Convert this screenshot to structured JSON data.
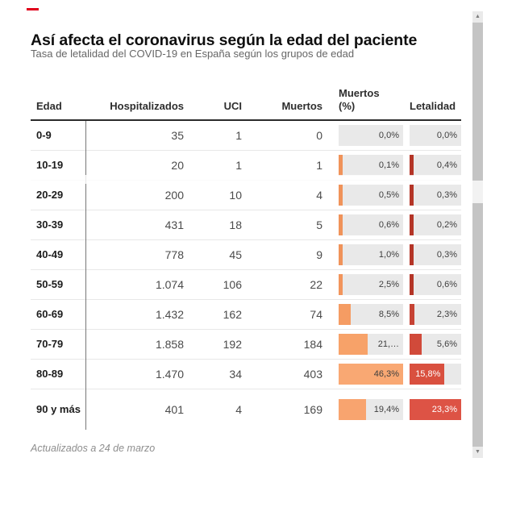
{
  "chart_data": {
    "type": "table",
    "title": "Así afecta el coronavirus según la edad del paciente",
    "subtitle": "Tasa de letalidad del COVID-19 en España según los grupos de edad",
    "note": "Actualizados a 24 de marzo",
    "columns": [
      "Edad",
      "Hospitalizados",
      "UCI",
      "Muertos",
      "Muertos (%)",
      "Letalidad"
    ],
    "bar_scales": {
      "muertos_pct_max": 46.3,
      "letalidad_max": 23.3
    },
    "colors": {
      "cell_bg": "#e9e9e9",
      "orange": "#f8a26c",
      "red": "#d9503f",
      "accent": "#e0001b"
    },
    "rows": [
      {
        "edad": "0-9",
        "hospitalizados": "35",
        "uci": "1",
        "muertos": "0",
        "muertos_pct": {
          "label": "0,0%",
          "value": 0.0,
          "bar_width_pct": 0,
          "bar_color": "#f0935a",
          "label_color": "#3e3e3e",
          "label_inside_bar": false
        },
        "letalidad": {
          "label": "0,0%",
          "value": 0.0,
          "bar_width_pct": 0,
          "bar_color": "#b43527",
          "label_color": "#3e3e3e",
          "label_inside_bar": false
        }
      },
      {
        "edad": "10-19",
        "hospitalizados": "20",
        "uci": "1",
        "muertos": "1",
        "muertos_pct": {
          "label": "0,1%",
          "value": 0.1,
          "bar_width_pct": 0.2,
          "bar_color": "#f0935a",
          "label_color": "#3e3e3e",
          "label_inside_bar": false
        },
        "letalidad": {
          "label": "0,4%",
          "value": 0.4,
          "bar_width_pct": 1.7,
          "bar_color": "#b43527",
          "label_color": "#3e3e3e",
          "label_inside_bar": false
        }
      },
      {
        "edad": "20-29",
        "hospitalizados": "200",
        "uci": "10",
        "muertos": "4",
        "muertos_pct": {
          "label": "0,5%",
          "value": 0.5,
          "bar_width_pct": 1.1,
          "bar_color": "#f0935a",
          "label_color": "#3e3e3e",
          "label_inside_bar": false
        },
        "letalidad": {
          "label": "0,3%",
          "value": 0.3,
          "bar_width_pct": 1.3,
          "bar_color": "#b43527",
          "label_color": "#3e3e3e",
          "label_inside_bar": false
        }
      },
      {
        "edad": "30-39",
        "hospitalizados": "431",
        "uci": "18",
        "muertos": "5",
        "muertos_pct": {
          "label": "0,6%",
          "value": 0.6,
          "bar_width_pct": 1.3,
          "bar_color": "#f0935a",
          "label_color": "#3e3e3e",
          "label_inside_bar": false
        },
        "letalidad": {
          "label": "0,2%",
          "value": 0.2,
          "bar_width_pct": 0.9,
          "bar_color": "#b43527",
          "label_color": "#3e3e3e",
          "label_inside_bar": false
        }
      },
      {
        "edad": "40-49",
        "hospitalizados": "778",
        "uci": "45",
        "muertos": "9",
        "muertos_pct": {
          "label": "1,0%",
          "value": 1.0,
          "bar_width_pct": 2.2,
          "bar_color": "#f0935a",
          "label_color": "#3e3e3e",
          "label_inside_bar": false
        },
        "letalidad": {
          "label": "0,3%",
          "value": 0.3,
          "bar_width_pct": 1.3,
          "bar_color": "#b43527",
          "label_color": "#3e3e3e",
          "label_inside_bar": false
        }
      },
      {
        "edad": "50-59",
        "hospitalizados": "1.074",
        "uci": "106",
        "muertos": "22",
        "muertos_pct": {
          "label": "2,5%",
          "value": 2.5,
          "bar_width_pct": 5.4,
          "bar_color": "#f2955c",
          "label_color": "#3e3e3e",
          "label_inside_bar": false
        },
        "letalidad": {
          "label": "0,6%",
          "value": 0.6,
          "bar_width_pct": 2.6,
          "bar_color": "#b43527",
          "label_color": "#3e3e3e",
          "label_inside_bar": false
        }
      },
      {
        "edad": "60-69",
        "hospitalizados": "1.432",
        "uci": "162",
        "muertos": "74",
        "muertos_pct": {
          "label": "8,5%",
          "value": 8.5,
          "bar_width_pct": 18.4,
          "bar_color": "#f59c63",
          "label_color": "#3e3e3e",
          "label_inside_bar": false
        },
        "letalidad": {
          "label": "2,3%",
          "value": 2.3,
          "bar_width_pct": 9.9,
          "bar_color": "#c64334",
          "label_color": "#3e3e3e",
          "label_inside_bar": false
        }
      },
      {
        "edad": "70-79",
        "hospitalizados": "1.858",
        "uci": "192",
        "muertos": "184",
        "muertos_pct": {
          "label": "21,…",
          "value": 21.1,
          "bar_width_pct": 45.6,
          "bar_color": "#f7a269",
          "label_color": "#3e3e3e",
          "label_inside_bar": false
        },
        "letalidad": {
          "label": "5,6%",
          "value": 5.6,
          "bar_width_pct": 24.0,
          "bar_color": "#d14a3a",
          "label_color": "#3e3e3e",
          "label_inside_bar": false
        }
      },
      {
        "edad": "80-89",
        "hospitalizados": "1.470",
        "uci": "34",
        "muertos": "403",
        "muertos_pct": {
          "label": "46,3%",
          "value": 46.3,
          "bar_width_pct": 100,
          "bar_color": "#f9a873",
          "label_color": "#3e3e3e",
          "label_inside_bar": true
        },
        "letalidad": {
          "label": "15,8%",
          "value": 15.8,
          "bar_width_pct": 67.8,
          "bar_color": "#d9503f",
          "label_color": "#ffffff",
          "label_inside_bar": true
        }
      },
      {
        "edad": "90 y más",
        "hospitalizados": "401",
        "uci": "4",
        "muertos": "169",
        "muertos_pct": {
          "label": "19,4%",
          "value": 19.4,
          "bar_width_pct": 41.9,
          "bar_color": "#f8a46f",
          "label_color": "#3e3e3e",
          "label_inside_bar": false
        },
        "letalidad": {
          "label": "23,3%",
          "value": 23.3,
          "bar_width_pct": 100,
          "bar_color": "#dd5345",
          "label_color": "#ffffff",
          "label_inside_bar": true
        }
      }
    ]
  },
  "scrollbar": {
    "up_arrow": "▲",
    "down_arrow": "▼"
  }
}
